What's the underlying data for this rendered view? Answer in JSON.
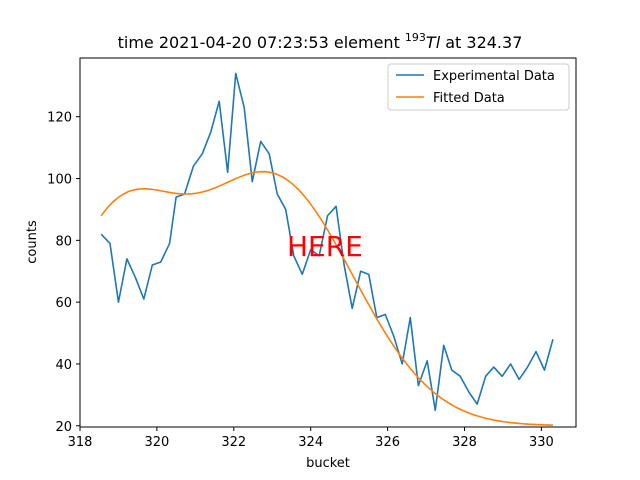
{
  "chart_data": {
    "type": "line",
    "title": {
      "prefix": "time 2021-04-20 07:23:53 element ",
      "isotope_mass": "193",
      "isotope_symbol": "Tl",
      "suffix": " at 324.37"
    },
    "xlabel": "bucket",
    "ylabel": "counts",
    "xlim": [
      318,
      330.9
    ],
    "ylim": [
      19.6,
      139
    ],
    "xticks": [
      318,
      320,
      322,
      324,
      326,
      328,
      330
    ],
    "yticks": [
      20,
      40,
      60,
      80,
      100,
      120
    ],
    "legend_position": "upper-right",
    "series": [
      {
        "name": "Experimental Data",
        "color": "#1f77b4",
        "x": [
          318.55,
          318.78,
          319.0,
          319.22,
          319.44,
          319.66,
          319.88,
          320.1,
          320.33,
          320.5,
          320.72,
          320.95,
          321.18,
          321.4,
          321.62,
          321.84,
          322.05,
          322.27,
          322.48,
          322.7,
          322.92,
          323.13,
          323.35,
          323.56,
          323.78,
          324.0,
          324.22,
          324.44,
          324.66,
          324.87,
          325.08,
          325.3,
          325.51,
          325.72,
          325.94,
          326.16,
          326.38,
          326.59,
          326.8,
          327.03,
          327.24,
          327.46,
          327.67,
          327.89,
          328.11,
          328.33,
          328.55,
          328.76,
          328.98,
          329.2,
          329.42,
          329.64,
          329.86,
          330.08,
          330.3
        ],
        "y": [
          82,
          79,
          60,
          74,
          68,
          61,
          72,
          73,
          79,
          94,
          95,
          104,
          108,
          115,
          125,
          102,
          134,
          123,
          99,
          112,
          108,
          95,
          90,
          75,
          69,
          77,
          75,
          88,
          91,
          72,
          58,
          70,
          69,
          55,
          56,
          49,
          40,
          55,
          33,
          41,
          25,
          46,
          38,
          36,
          31,
          27,
          36,
          39,
          36,
          40,
          35,
          39,
          44,
          38,
          48
        ]
      },
      {
        "name": "Fitted Data",
        "color": "#ff7f0e",
        "baseline": 20,
        "amplitude": 80,
        "center": 323,
        "sigma": 2.1,
        "tail_center": 318.9,
        "tail_amplitude": 61,
        "tail_sigma": 1.55,
        "x_range": [
          318.55,
          330.3
        ]
      }
    ],
    "annotation": {
      "text": "HERE",
      "x": 324.37,
      "y": 75,
      "color": "#ff0000"
    }
  }
}
